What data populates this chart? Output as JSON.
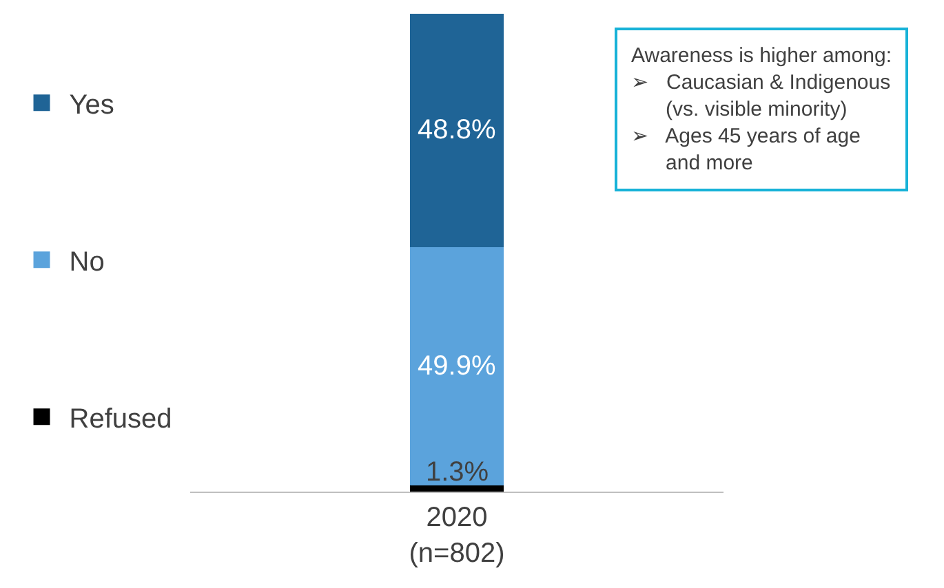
{
  "chart_data": {
    "type": "bar",
    "stacked": true,
    "categories": [
      "2020\n(n=802)"
    ],
    "ylim": [
      0,
      100
    ],
    "tick_labels": "x",
    "legend": "left",
    "series": [
      {
        "name": "Refused",
        "color": "#000000",
        "values": [
          1.3
        ],
        "value_labels": [
          "1.3%"
        ]
      },
      {
        "name": "No",
        "color": "#5ba3dc",
        "values": [
          49.9
        ],
        "value_labels": [
          "49.9%"
        ]
      },
      {
        "name": "Yes",
        "color": "#1f6496",
        "values": [
          48.8
        ],
        "value_labels": [
          "48.8%"
        ]
      }
    ],
    "annotations": [
      "Awareness is higher among:\n➢   Caucasian & Indigenous\n      (vs. visible minority)\n➢   Ages 45 years of age\n      and more"
    ]
  }
}
